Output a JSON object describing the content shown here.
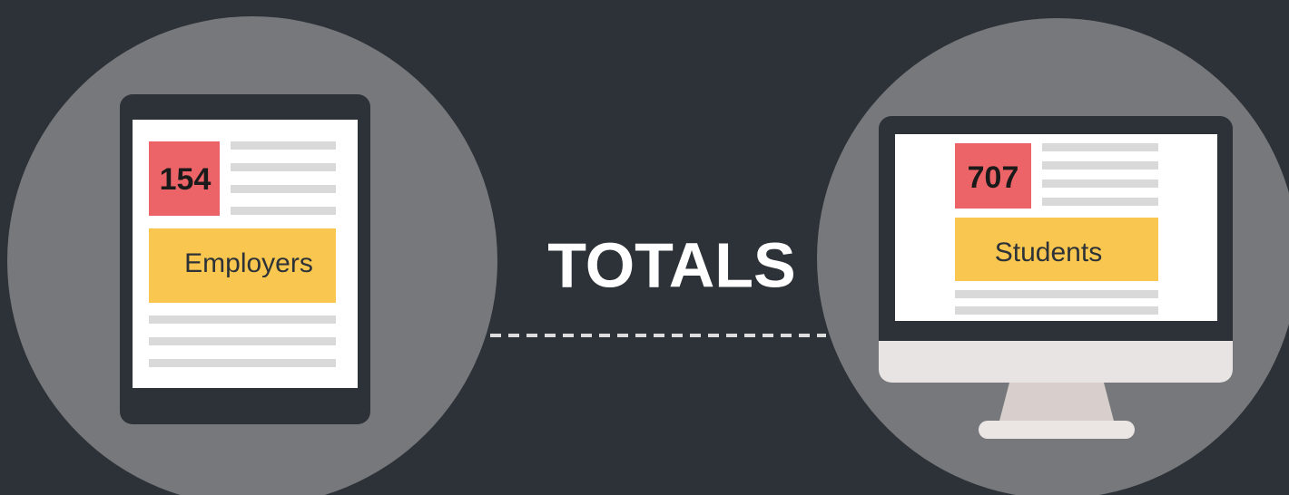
{
  "title": "TOTALS",
  "items": [
    {
      "value": 154,
      "label": "Employers"
    },
    {
      "value": 707,
      "label": "Students"
    }
  ]
}
